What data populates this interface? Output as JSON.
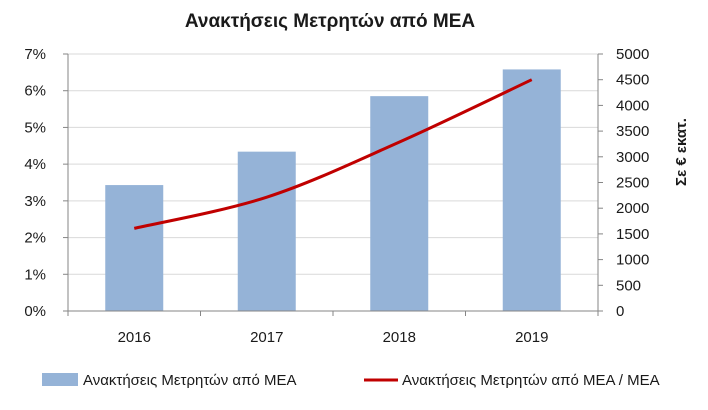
{
  "chart_data": {
    "type": "bar",
    "title": "Ανακτήσεις Μετρητών από ΜΕΑ",
    "categories": [
      "2016",
      "2017",
      "2018",
      "2019"
    ],
    "series": [
      {
        "name": "Ανακτήσεις Μετρητών από ΜΕΑ",
        "type": "bar",
        "axis": "right",
        "color": "#95b3d7",
        "values": [
          2450,
          3100,
          4180,
          4700
        ]
      },
      {
        "name": "Ανακτήσεις Μετρητών από ΜΕΑ / ΜΕΑ",
        "type": "line",
        "axis": "left",
        "color": "#c00000",
        "values": [
          0.0225,
          0.031,
          0.046,
          0.063
        ]
      }
    ],
    "y_left": {
      "ylim": [
        0,
        0.07
      ],
      "ticks": [
        0,
        0.01,
        0.02,
        0.03,
        0.04,
        0.05,
        0.06,
        0.07
      ],
      "tick_labels": [
        "0%",
        "1%",
        "2%",
        "3%",
        "4%",
        "5%",
        "6%",
        "7%"
      ]
    },
    "y_right": {
      "label": "Σε € εκατ.",
      "ylim": [
        0,
        5000
      ],
      "ticks": [
        0,
        500,
        1000,
        1500,
        2000,
        2500,
        3000,
        3500,
        4000,
        4500,
        5000
      ],
      "tick_labels": [
        "0",
        "500",
        "1000",
        "1500",
        "2000",
        "2500",
        "3000",
        "3500",
        "4000",
        "4500",
        "5000"
      ]
    },
    "grid": true,
    "legend_position": "bottom"
  }
}
